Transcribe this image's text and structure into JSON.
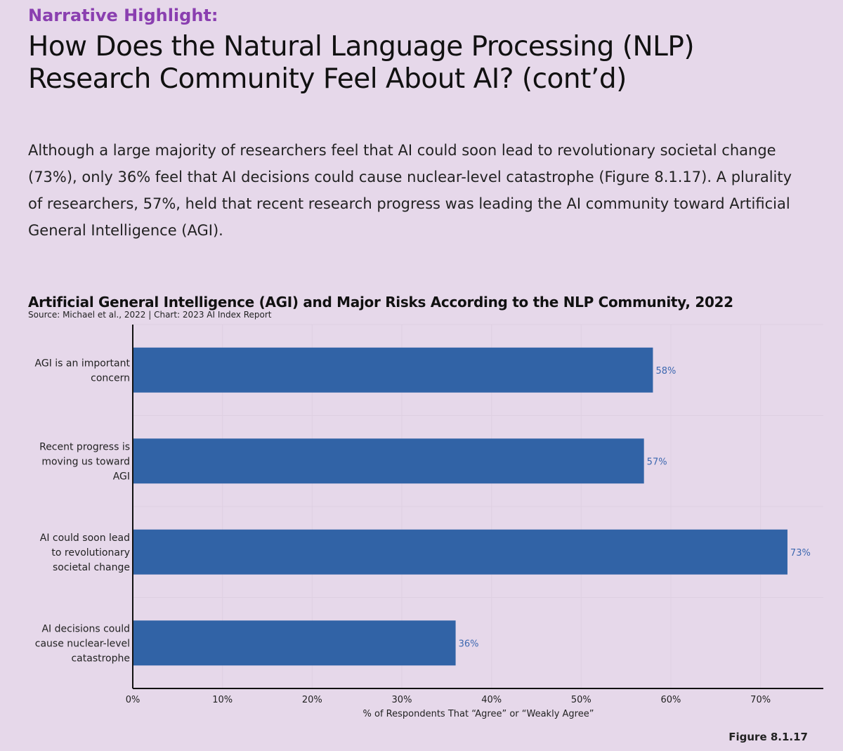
{
  "header": {
    "kicker": "Narrative Highlight:",
    "title": "How Does the Natural Language Processing (NLP) Research Community Feel About AI? (cont’d)"
  },
  "body": {
    "paragraph": "Although a large majority of researchers feel that AI could soon lead to revolutionary societal change (73%), only 36% feel that AI decisions could cause nuclear-level catastrophe (Figure 8.1.17). A plurality of researchers, 57%, held that recent research progress was leading the AI community toward Artificial General Intelligence (AGI)."
  },
  "colors": {
    "background": "#e6d8ea",
    "bar": "#3163a6",
    "label": "#3d68b0",
    "kicker": "#8a3fb0"
  },
  "chart_data": {
    "type": "bar",
    "orientation": "horizontal",
    "title": "Artificial General Intelligence (AGI) and Major Risks According to the NLP Community, 2022",
    "subtitle": "Source: Michael et al., 2022 | Chart: 2023 AI Index Report",
    "categories": [
      [
        "AGI is an important",
        "concern"
      ],
      [
        "Recent progress is",
        "moving us toward",
        "AGI"
      ],
      [
        "AI could soon lead",
        "to revolutionary",
        "societal change"
      ],
      [
        "AI decisions could",
        "cause nuclear-level",
        "catastrophe"
      ]
    ],
    "values": [
      58,
      57,
      73,
      36
    ],
    "value_labels": [
      "58%",
      "57%",
      "73%",
      "36%"
    ],
    "xlabel": "% of Respondents That “Agree” or “Weakly Agree”",
    "xlim": [
      0,
      77
    ],
    "xticks": [
      0,
      10,
      20,
      30,
      40,
      50,
      60,
      70
    ],
    "xtick_labels": [
      "0%",
      "10%",
      "20%",
      "30%",
      "40%",
      "50%",
      "60%",
      "70%"
    ],
    "grid": true
  },
  "footer": {
    "figure": "Figure 8.1.17"
  }
}
